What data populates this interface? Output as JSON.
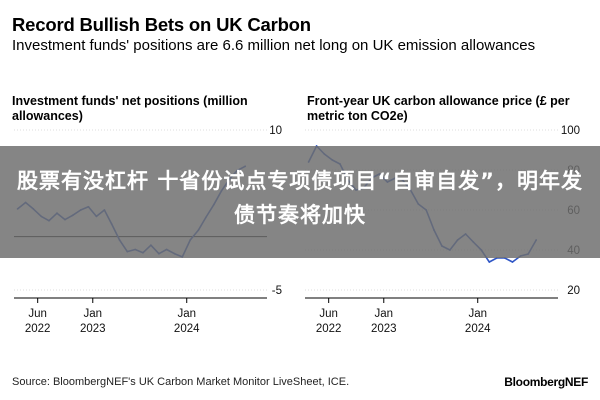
{
  "header": {
    "title": "Record Bullish Bets on UK Carbon",
    "subtitle": "Investment funds' positions are 6.6 million net long on UK emission allowances"
  },
  "banner": {
    "text": "股票有没杠杆 十省份试点专项债项目“自审自发”，明年发债节奏将加快"
  },
  "footer": {
    "source": "Source: BloombergNEF's UK Carbon Market Monitor LiveSheet, ICE.",
    "brand": "BloombergNEF"
  },
  "colors": {
    "line": "#2f56c6",
    "zero_line": "#000000",
    "grid": "#bdbdbd",
    "banner": "#6e6e6e"
  },
  "chart_data": [
    {
      "type": "line",
      "title": "Investment funds' net positions (million allowances)",
      "ylim": [
        -5,
        10
      ],
      "yticks": [
        10,
        -5
      ],
      "ytick_labels": [
        "10",
        "-5"
      ],
      "xticks": [
        "2022-06-01",
        "2023-01-01",
        "2024-01-01"
      ],
      "xtick_labels": [
        "Jun\n2022",
        "Jan\n2023",
        "Jan\n2024"
      ],
      "xlim": [
        "2022-03-01",
        "2024-09-30"
      ],
      "series": [
        {
          "x": [
            "2022-03-15",
            "2022-04-15",
            "2022-05-15",
            "2022-06-15",
            "2022-07-15",
            "2022-08-15",
            "2022-09-15",
            "2022-10-15",
            "2022-11-15",
            "2022-12-15",
            "2023-01-15",
            "2023-02-15",
            "2023-03-15",
            "2023-04-15",
            "2023-05-15",
            "2023-06-15",
            "2023-07-15",
            "2023-08-15",
            "2023-09-15",
            "2023-10-15",
            "2023-11-15",
            "2023-12-15",
            "2024-01-15",
            "2024-02-15",
            "2024-03-15",
            "2024-04-15",
            "2024-05-15",
            "2024-06-15",
            "2024-07-15",
            "2024-08-15"
          ],
          "values": [
            2.6,
            3.2,
            2.6,
            1.9,
            1.5,
            2.2,
            1.6,
            2.0,
            2.5,
            2.8,
            1.9,
            2.5,
            1.2,
            -0.3,
            -1.4,
            -1.2,
            -1.5,
            -0.8,
            -1.6,
            -1.2,
            -1.6,
            -1.9,
            -0.3,
            0.6,
            1.8,
            3.0,
            4.3,
            5.4,
            6.2,
            6.6
          ]
        }
      ]
    },
    {
      "type": "line",
      "title": "Front-year UK carbon allowance price (£ per metric ton CO2e)",
      "ylim": [
        20,
        100
      ],
      "yticks": [
        100,
        80,
        60,
        40,
        20
      ],
      "ytick_labels": [
        "100",
        "80",
        "60",
        "40",
        "20"
      ],
      "xticks": [
        "2022-06-01",
        "2023-01-01",
        "2024-01-01"
      ],
      "xtick_labels": [
        "Jun\n2022",
        "Jan\n2023",
        "Jan\n2024"
      ],
      "xlim": [
        "2022-03-01",
        "2024-09-30"
      ],
      "series": [
        {
          "x": [
            "2022-03-15",
            "2022-04-15",
            "2022-05-15",
            "2022-06-15",
            "2022-07-15",
            "2022-08-15",
            "2022-09-15",
            "2022-10-15",
            "2022-11-15",
            "2022-12-15",
            "2023-01-15",
            "2023-02-15",
            "2023-03-15",
            "2023-04-15",
            "2023-05-15",
            "2023-06-15",
            "2023-07-15",
            "2023-08-15",
            "2023-09-15",
            "2023-10-15",
            "2023-11-15",
            "2023-12-15",
            "2024-01-15",
            "2024-02-15",
            "2024-03-15",
            "2024-04-15",
            "2024-05-15",
            "2024-06-15",
            "2024-07-15",
            "2024-08-15"
          ],
          "values": [
            84,
            92,
            88,
            85,
            83,
            75,
            70,
            71,
            76,
            78,
            74,
            76,
            75,
            70,
            63,
            60,
            50,
            42,
            40,
            45,
            48,
            44,
            40,
            34,
            36,
            36,
            34,
            37,
            38,
            45
          ]
        }
      ]
    }
  ]
}
